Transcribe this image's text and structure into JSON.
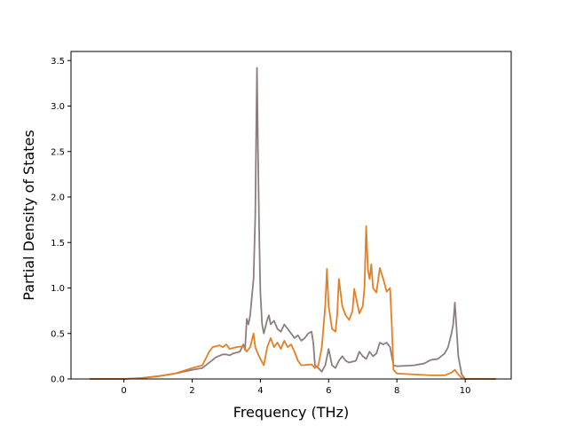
{
  "chart_data": {
    "type": "line",
    "title": "",
    "xlabel": "Frequency (THz)",
    "ylabel": "Partial Density of States",
    "xlim": [
      -1.55,
      11.35
    ],
    "ylim": [
      0.0,
      3.6
    ],
    "xticks": [
      0,
      2,
      4,
      6,
      8,
      10
    ],
    "yticks": [
      0.0,
      0.5,
      1.0,
      1.5,
      2.0,
      2.5,
      3.0,
      3.5
    ],
    "xtick_labels": [
      "0",
      "2",
      "4",
      "6",
      "8",
      "10"
    ],
    "ytick_labels": [
      "0.0",
      "0.5",
      "1.0",
      "1.5",
      "2.0",
      "2.5",
      "3.0",
      "3.5"
    ],
    "grid": false,
    "legend": "none",
    "series": [
      {
        "color": "#8c7e7e",
        "points": [
          [
            -1.0,
            0.0
          ],
          [
            0.0,
            0.0
          ],
          [
            0.5,
            0.01
          ],
          [
            1.0,
            0.03
          ],
          [
            1.5,
            0.06
          ],
          [
            2.0,
            0.1
          ],
          [
            2.3,
            0.12
          ],
          [
            2.5,
            0.18
          ],
          [
            2.7,
            0.24
          ],
          [
            2.9,
            0.27
          ],
          [
            3.0,
            0.27
          ],
          [
            3.1,
            0.26
          ],
          [
            3.2,
            0.28
          ],
          [
            3.4,
            0.3
          ],
          [
            3.5,
            0.38
          ],
          [
            3.55,
            0.32
          ],
          [
            3.6,
            0.66
          ],
          [
            3.65,
            0.6
          ],
          [
            3.7,
            0.7
          ],
          [
            3.75,
            0.9
          ],
          [
            3.8,
            1.1
          ],
          [
            3.85,
            1.8
          ],
          [
            3.88,
            2.8
          ],
          [
            3.9,
            3.42
          ],
          [
            3.93,
            2.5
          ],
          [
            3.97,
            1.5
          ],
          [
            4.0,
            0.95
          ],
          [
            4.05,
            0.6
          ],
          [
            4.1,
            0.5
          ],
          [
            4.2,
            0.65
          ],
          [
            4.25,
            0.7
          ],
          [
            4.3,
            0.6
          ],
          [
            4.4,
            0.64
          ],
          [
            4.5,
            0.55
          ],
          [
            4.6,
            0.52
          ],
          [
            4.7,
            0.6
          ],
          [
            4.8,
            0.55
          ],
          [
            4.9,
            0.5
          ],
          [
            5.0,
            0.45
          ],
          [
            5.1,
            0.48
          ],
          [
            5.2,
            0.42
          ],
          [
            5.3,
            0.45
          ],
          [
            5.4,
            0.5
          ],
          [
            5.5,
            0.52
          ],
          [
            5.55,
            0.4
          ],
          [
            5.6,
            0.15
          ],
          [
            5.7,
            0.12
          ],
          [
            5.8,
            0.08
          ],
          [
            5.9,
            0.15
          ],
          [
            6.0,
            0.33
          ],
          [
            6.1,
            0.15
          ],
          [
            6.2,
            0.12
          ],
          [
            6.3,
            0.2
          ],
          [
            6.4,
            0.25
          ],
          [
            6.5,
            0.2
          ],
          [
            6.6,
            0.18
          ],
          [
            6.8,
            0.2
          ],
          [
            6.9,
            0.3
          ],
          [
            7.0,
            0.25
          ],
          [
            7.1,
            0.22
          ],
          [
            7.2,
            0.3
          ],
          [
            7.3,
            0.25
          ],
          [
            7.4,
            0.28
          ],
          [
            7.5,
            0.4
          ],
          [
            7.6,
            0.38
          ],
          [
            7.7,
            0.4
          ],
          [
            7.8,
            0.35
          ],
          [
            7.9,
            0.15
          ],
          [
            8.0,
            0.14
          ],
          [
            8.5,
            0.15
          ],
          [
            8.8,
            0.17
          ],
          [
            9.0,
            0.21
          ],
          [
            9.2,
            0.22
          ],
          [
            9.4,
            0.28
          ],
          [
            9.5,
            0.35
          ],
          [
            9.6,
            0.5
          ],
          [
            9.65,
            0.6
          ],
          [
            9.7,
            0.84
          ],
          [
            9.75,
            0.55
          ],
          [
            9.8,
            0.25
          ],
          [
            9.9,
            0.05
          ],
          [
            10.0,
            0.0
          ],
          [
            10.9,
            0.0
          ]
        ]
      },
      {
        "color": "#e67e22",
        "points": [
          [
            -1.0,
            0.0
          ],
          [
            0.0,
            0.0
          ],
          [
            0.5,
            0.01
          ],
          [
            1.0,
            0.03
          ],
          [
            1.5,
            0.06
          ],
          [
            2.0,
            0.12
          ],
          [
            2.3,
            0.15
          ],
          [
            2.5,
            0.3
          ],
          [
            2.6,
            0.35
          ],
          [
            2.8,
            0.37
          ],
          [
            2.9,
            0.35
          ],
          [
            3.0,
            0.38
          ],
          [
            3.1,
            0.33
          ],
          [
            3.3,
            0.35
          ],
          [
            3.5,
            0.36
          ],
          [
            3.6,
            0.3
          ],
          [
            3.7,
            0.35
          ],
          [
            3.8,
            0.5
          ],
          [
            3.85,
            0.35
          ],
          [
            3.9,
            0.3
          ],
          [
            4.0,
            0.22
          ],
          [
            4.1,
            0.15
          ],
          [
            4.2,
            0.35
          ],
          [
            4.3,
            0.45
          ],
          [
            4.4,
            0.35
          ],
          [
            4.5,
            0.4
          ],
          [
            4.6,
            0.33
          ],
          [
            4.7,
            0.42
          ],
          [
            4.8,
            0.35
          ],
          [
            4.9,
            0.38
          ],
          [
            5.0,
            0.3
          ],
          [
            5.1,
            0.2
          ],
          [
            5.2,
            0.15
          ],
          [
            5.5,
            0.16
          ],
          [
            5.6,
            0.12
          ],
          [
            5.7,
            0.15
          ],
          [
            5.8,
            0.35
          ],
          [
            5.9,
            0.8
          ],
          [
            5.95,
            1.21
          ],
          [
            6.0,
            0.8
          ],
          [
            6.1,
            0.55
          ],
          [
            6.2,
            0.52
          ],
          [
            6.25,
            0.7
          ],
          [
            6.3,
            1.1
          ],
          [
            6.35,
            0.95
          ],
          [
            6.4,
            0.8
          ],
          [
            6.5,
            0.7
          ],
          [
            6.6,
            0.65
          ],
          [
            6.7,
            0.75
          ],
          [
            6.75,
            0.99
          ],
          [
            6.8,
            0.9
          ],
          [
            6.9,
            0.72
          ],
          [
            7.0,
            0.8
          ],
          [
            7.05,
            1.0
          ],
          [
            7.1,
            1.68
          ],
          [
            7.15,
            1.2
          ],
          [
            7.2,
            1.1
          ],
          [
            7.25,
            1.26
          ],
          [
            7.3,
            1.0
          ],
          [
            7.4,
            0.95
          ],
          [
            7.5,
            1.22
          ],
          [
            7.6,
            1.1
          ],
          [
            7.7,
            0.96
          ],
          [
            7.8,
            1.0
          ],
          [
            7.85,
            0.6
          ],
          [
            7.9,
            0.1
          ],
          [
            8.0,
            0.06
          ],
          [
            8.5,
            0.05
          ],
          [
            9.0,
            0.04
          ],
          [
            9.4,
            0.04
          ],
          [
            9.6,
            0.07
          ],
          [
            9.7,
            0.1
          ],
          [
            9.8,
            0.05
          ],
          [
            9.9,
            0.01
          ],
          [
            10.0,
            0.0
          ],
          [
            10.9,
            0.0
          ]
        ]
      }
    ]
  }
}
